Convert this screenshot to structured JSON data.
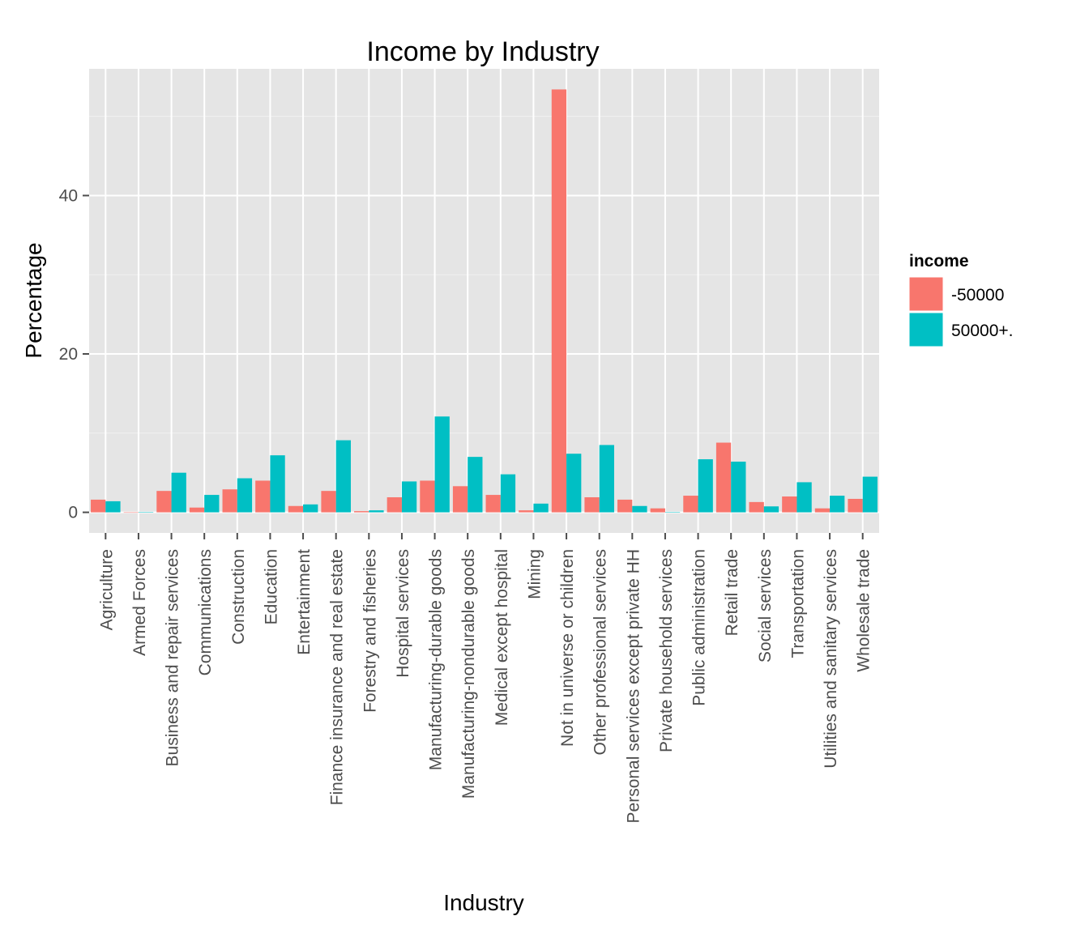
{
  "chart_data": {
    "type": "bar",
    "title": "Income by Industry",
    "xlabel": "Industry",
    "ylabel": "Percentage",
    "ylim": [
      -2.6,
      56
    ],
    "yticks": [
      0,
      20,
      40
    ],
    "grid": true,
    "legend": {
      "title": "income",
      "position": "right"
    },
    "categories": [
      "Agriculture",
      "Armed Forces",
      "Business and repair services",
      "Communications",
      "Construction",
      "Education",
      "Entertainment",
      "Finance insurance and real estate",
      "Forestry and fisheries",
      "Hospital services",
      "Manufacturing-durable goods",
      "Manufacturing-nondurable goods",
      "Medical except hospital",
      "Mining",
      "Not in universe or children",
      "Other professional services",
      "Personal services except private HH",
      "Private household services",
      "Public administration",
      "Retail trade",
      "Social services",
      "Transportation",
      "Utilities and sanitary services",
      "Wholesale trade"
    ],
    "series": [
      {
        "name": "-50000",
        "color": "#F8766D",
        "values": [
          1.6,
          0.0,
          2.7,
          0.6,
          2.9,
          4.0,
          0.8,
          2.7,
          0.15,
          1.9,
          4.0,
          3.3,
          2.2,
          0.25,
          53.4,
          1.9,
          1.6,
          0.5,
          2.1,
          8.8,
          1.3,
          2.0,
          0.5,
          1.7
        ]
      },
      {
        "name": "50000+.",
        "color": "#00BFC4",
        "values": [
          1.4,
          0.05,
          5.0,
          2.2,
          4.3,
          7.2,
          1.0,
          9.1,
          0.25,
          3.9,
          12.1,
          7.0,
          4.8,
          1.1,
          7.4,
          8.5,
          0.8,
          0.05,
          6.7,
          6.4,
          0.75,
          3.8,
          2.1,
          4.5
        ]
      }
    ]
  },
  "colors": {
    "panel_background": "#E5E5E5",
    "grid_major": "#FFFFFF",
    "grid_minor": "#F2F2F2",
    "tick_text": "#4D4D4D",
    "tick_mark": "#4D4D4D"
  }
}
